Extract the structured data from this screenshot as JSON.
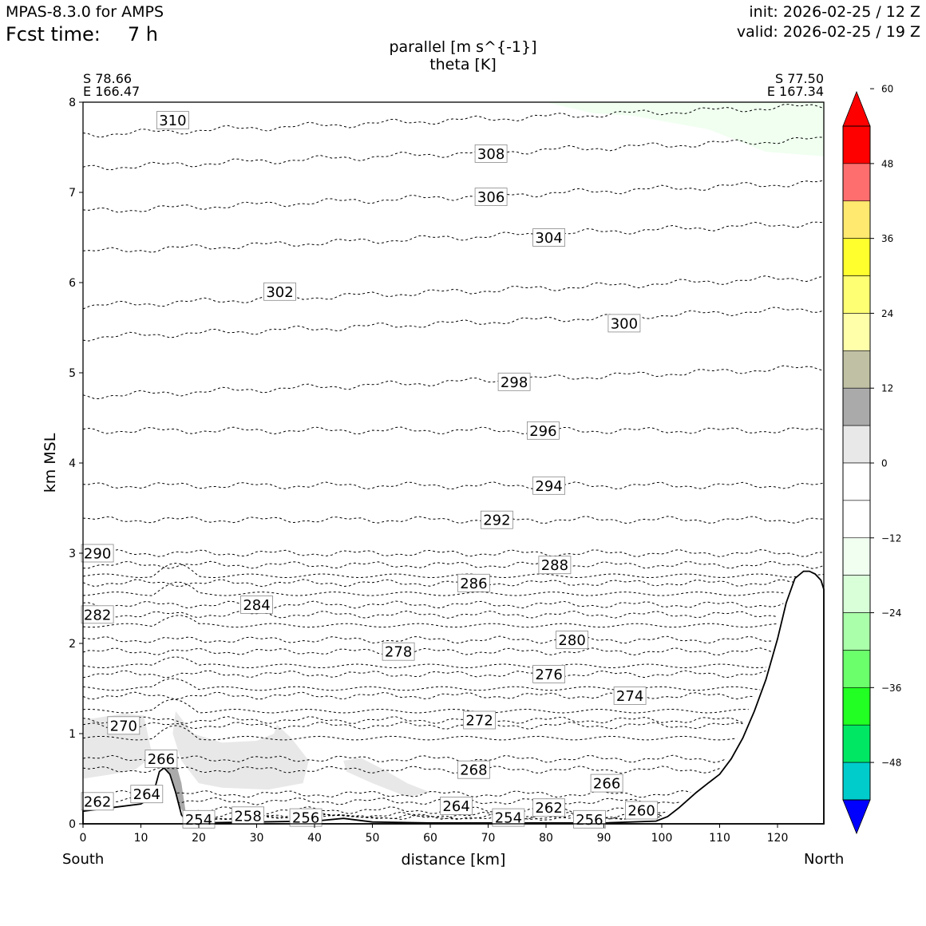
{
  "header": {
    "model": "MPAS-8.3.0 for AMPS",
    "fcst_label": "Fcst time:",
    "fcst_value": "7 h",
    "init": "init: 2026-02-25 / 12 Z",
    "valid": "valid: 2026-02-25 / 19 Z"
  },
  "endpoints": {
    "left_lat": "S 78.66",
    "left_lon": "E 166.47",
    "right_lat": "S 77.50",
    "right_lon": "E 167.34",
    "left_label": "South",
    "right_label": "North"
  },
  "chart_data": {
    "type": "contour",
    "title_line1": "parallel [m s^{-1}]",
    "title_line2": "theta [K]",
    "xlabel": "distance [km]",
    "ylabel": "km MSL",
    "xlim": [
      0,
      128
    ],
    "ylim": [
      0,
      8
    ],
    "xticks": [
      0,
      10,
      20,
      30,
      40,
      50,
      60,
      70,
      80,
      90,
      100,
      110,
      120
    ],
    "yticks": [
      0,
      1,
      2,
      3,
      4,
      5,
      6,
      7,
      8
    ],
    "colorbar": {
      "ticks": [
        60,
        48,
        36,
        24,
        12,
        0,
        -12,
        -24,
        -36,
        -48
      ],
      "tick_labels": [
        "60",
        "48",
        "36",
        "24",
        "12",
        "0",
        "−12",
        "−24",
        "−36",
        "−48"
      ],
      "bounds": [
        54,
        48,
        42,
        36,
        30,
        24,
        18,
        12,
        6,
        0,
        -6,
        -12,
        -18,
        -24,
        -30,
        -36,
        -42,
        -48,
        -54
      ],
      "colors": [
        "#ff0000",
        "#ff6e6e",
        "#ffe96e",
        "#ffff2e",
        "#ffff73",
        "#ffffaa",
        "#c0c0a4",
        "#aaaaaa",
        "#e8e8e8",
        "#ffffff",
        "#ffffff",
        "#f0fff0",
        "#d8ffd8",
        "#aaffaa",
        "#6bff6b",
        "#22ff22",
        "#00e763",
        "#00cccc",
        "#0000ff"
      ],
      "extend_max_color": "#ff0000",
      "extend_min_color": "#0000ff"
    },
    "theta_labels": [
      {
        "value": "310",
        "x": 15.5,
        "y": 7.8
      },
      {
        "value": "308",
        "x": 70.5,
        "y": 7.43
      },
      {
        "value": "306",
        "x": 70.5,
        "y": 6.95
      },
      {
        "value": "304",
        "x": 80.5,
        "y": 6.5
      },
      {
        "value": "302",
        "x": 34,
        "y": 5.9
      },
      {
        "value": "300",
        "x": 93.5,
        "y": 5.55
      },
      {
        "value": "298",
        "x": 74.5,
        "y": 4.9
      },
      {
        "value": "296",
        "x": 79.5,
        "y": 4.36
      },
      {
        "value": "294",
        "x": 80.5,
        "y": 3.75
      },
      {
        "value": "292",
        "x": 71.5,
        "y": 3.37
      },
      {
        "value": "290",
        "x": 2.5,
        "y": 3.0
      },
      {
        "value": "288",
        "x": 81.5,
        "y": 2.87
      },
      {
        "value": "286",
        "x": 67.5,
        "y": 2.67
      },
      {
        "value": "284",
        "x": 30,
        "y": 2.43
      },
      {
        "value": "282",
        "x": 2.5,
        "y": 2.32
      },
      {
        "value": "280",
        "x": 84.5,
        "y": 2.04
      },
      {
        "value": "278",
        "x": 54.5,
        "y": 1.91
      },
      {
        "value": "276",
        "x": 80.5,
        "y": 1.66
      },
      {
        "value": "274",
        "x": 94.5,
        "y": 1.42
      },
      {
        "value": "272",
        "x": 68.5,
        "y": 1.15
      },
      {
        "value": "270",
        "x": 7,
        "y": 1.09
      },
      {
        "value": "268",
        "x": 67.5,
        "y": 0.6
      },
      {
        "value": "266",
        "x": 13.5,
        "y": 0.72
      },
      {
        "value": "266",
        "x": 90.5,
        "y": 0.45
      },
      {
        "value": "264",
        "x": 11,
        "y": 0.33
      },
      {
        "value": "264",
        "x": 64.5,
        "y": 0.2
      },
      {
        "value": "262",
        "x": 2.5,
        "y": 0.25
      },
      {
        "value": "262",
        "x": 80.5,
        "y": 0.18
      },
      {
        "value": "260",
        "x": 96.5,
        "y": 0.15
      },
      {
        "value": "258",
        "x": 28.5,
        "y": 0.09
      },
      {
        "value": "256",
        "x": 38.5,
        "y": 0.07
      },
      {
        "value": "256",
        "x": 87.5,
        "y": 0.05
      },
      {
        "value": "254",
        "x": 20,
        "y": 0.05
      },
      {
        "value": "254",
        "x": 73.5,
        "y": 0.07
      }
    ],
    "terrain": {
      "x": [
        0,
        5,
        10,
        12,
        13.2,
        14,
        15,
        16,
        17,
        18,
        20,
        30,
        40,
        45,
        50,
        60,
        70,
        80,
        90,
        99,
        101,
        103,
        106,
        108,
        110,
        112,
        114,
        116,
        118,
        120,
        121.5,
        123,
        124.5,
        125.5,
        126.5,
        127.5,
        128
      ],
      "y": [
        0.14,
        0.18,
        0.22,
        0.3,
        0.58,
        0.62,
        0.55,
        0.35,
        0.1,
        0.02,
        0.01,
        0.02,
        0.03,
        0.06,
        0.02,
        0.01,
        0.01,
        0.01,
        0.01,
        0.03,
        0.08,
        0.18,
        0.35,
        0.45,
        0.55,
        0.72,
        0.95,
        1.25,
        1.6,
        2.05,
        2.45,
        2.72,
        2.8,
        2.8,
        2.77,
        2.7,
        2.6
      ]
    }
  }
}
